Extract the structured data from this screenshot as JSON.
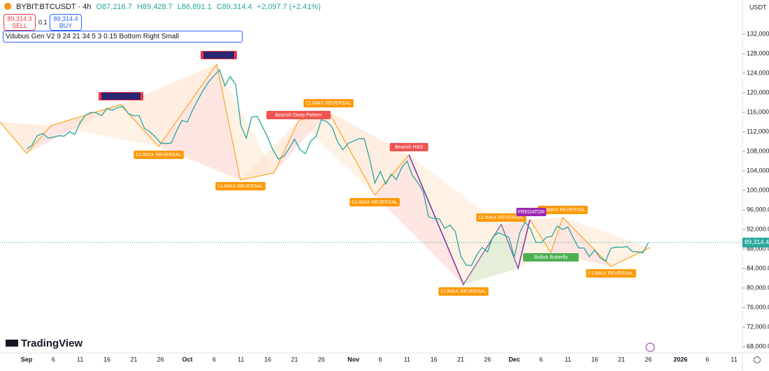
{
  "header": {
    "symbol": "BYBIT:BTCUSDT · 4h",
    "open": "O87,216.7",
    "high": "H89,428.7",
    "low": "L86,891.1",
    "close": "C89,314.4",
    "change": "+2,097.7 (+2.41%)"
  },
  "order_panel": {
    "sell_price": "89,314.3",
    "sell": "SELL",
    "size": "0.1",
    "buy_price": "89,314.4",
    "buy": "BUY"
  },
  "indicator": "Vdubus Gen V2 9 24 21 34 5 3 0.15 Bottom Right Small",
  "currency": "USDT",
  "brand": "TradingView",
  "chart_data": {
    "type": "line",
    "color": "#26a69a",
    "categories": [
      "Sep",
      null,
      null,
      null,
      null,
      "6",
      null,
      null,
      null,
      null,
      "11",
      null,
      null,
      null,
      null,
      "16",
      null,
      null,
      null,
      null,
      "21",
      null,
      null,
      null,
      null,
      "26",
      null,
      null,
      null,
      null,
      "Oct",
      null,
      null,
      null,
      null,
      "6",
      null,
      null,
      null,
      null,
      "11",
      null,
      null,
      null,
      null,
      "16",
      null,
      null,
      null,
      null,
      "21",
      null,
      null,
      null,
      null,
      "26",
      null,
      null,
      null,
      null,
      null,
      "Nov",
      null,
      null,
      null,
      null,
      "6",
      null,
      null,
      null,
      null,
      "11",
      null,
      null,
      null,
      null,
      "16",
      null,
      null,
      null,
      null,
      "21",
      null,
      null,
      null,
      null,
      "26",
      null,
      null,
      null,
      null,
      "Dec",
      null,
      null,
      null,
      null,
      "6",
      null,
      null,
      null,
      null,
      "11",
      null,
      null,
      null,
      null,
      "16",
      null,
      null,
      null,
      null,
      "21",
      null,
      null,
      null,
      null,
      "26",
      null,
      null,
      null,
      null,
      null,
      "2026",
      null,
      null,
      null,
      null,
      "6",
      null,
      null,
      null,
      null,
      "11"
    ],
    "values": [
      108500,
      109200,
      111200,
      111700,
      110700,
      110900,
      111200,
      111100,
      112000,
      111500,
      113900,
      115400,
      116000,
      115900,
      115300,
      116800,
      116400,
      117000,
      117200,
      115700,
      115300,
      115300,
      112700,
      112000,
      111000,
      109700,
      109600,
      109700,
      112200,
      114300,
      114000,
      116500,
      118600,
      120600,
      122300,
      123500,
      124700,
      121400,
      123300,
      121700,
      113200,
      110700,
      115000,
      115200,
      113100,
      110800,
      108200,
      106400,
      107000,
      108600,
      110500,
      108400,
      107500,
      110100,
      111000,
      114500,
      114100,
      113000,
      110000,
      108300,
      109600,
      110100,
      110600,
      110600,
      106500,
      101500,
      103900,
      101300,
      103300,
      102200,
      104700,
      106000,
      103000,
      101600,
      99700,
      94600,
      94200,
      94200,
      92200,
      92900,
      91500,
      86600,
      84700,
      84600,
      86800,
      88300,
      87400,
      90500,
      91300,
      90900,
      90400,
      86300,
      91300,
      93500,
      92100,
      89400,
      89300,
      90400,
      90600,
      92700,
      92000,
      92500,
      90300,
      88200,
      88200,
      86400,
      87800,
      86200,
      85500,
      88100,
      88400,
      88300,
      88500,
      87500,
      87400,
      87200,
      89314.4,
      null,
      null,
      null,
      null,
      null,
      null,
      null,
      null,
      null,
      null,
      null,
      null,
      null,
      null,
      null,
      null
    ],
    "ylim": [
      66860,
      135860
    ],
    "yticks": [
      {
        "value": 68000,
        "label": "68,000.0"
      },
      {
        "value": 72000,
        "label": "72,000.0"
      },
      {
        "value": 76000,
        "label": "76,000.0"
      },
      {
        "value": 80000,
        "label": "80,000.0"
      },
      {
        "value": 84000,
        "label": "84,000.0"
      },
      {
        "value": 88000,
        "label": "88,000.0"
      },
      {
        "value": 92000,
        "label": "92,000.0"
      },
      {
        "value": 96000,
        "label": "96,000.0"
      },
      {
        "value": 100000,
        "label": "100,000.0"
      },
      {
        "value": 104000,
        "label": "104,000.0"
      },
      {
        "value": 108000,
        "label": "108,000.0"
      },
      {
        "value": 112000,
        "label": "112,000.0"
      },
      {
        "value": 116000,
        "label": "116,000.0"
      },
      {
        "value": 120000,
        "label": "120,000.0"
      },
      {
        "value": 124000,
        "label": "124,000.0"
      },
      {
        "value": 128000,
        "label": "128,000.0"
      },
      {
        "value": 132000,
        "label": "132,000.0"
      }
    ],
    "last_price": {
      "value": 89314.4,
      "label": "89,314.4"
    },
    "annotations": [
      {
        "text": "CLIMAX REVERSAL",
        "color": "#ff9800"
      },
      {
        "text": "CLIMAX REVERSAL",
        "color": "#ff9800"
      },
      {
        "text": "CLIMAX REVERSAL",
        "color": "#ff9800"
      },
      {
        "text": "CLIMAX REVERSAL",
        "color": "#ff9800"
      },
      {
        "text": "CLIMAX REVERSAL",
        "color": "#ff9800"
      },
      {
        "text": "CLIMAX REVERSAL",
        "color": "#ff9800"
      },
      {
        "text": "CLIMAX REVERSAL",
        "color": "#ff9800"
      },
      {
        "text": "CLIMAX REVERSAL",
        "color": "#ff9800"
      },
      {
        "text": "Bearish Deep Pattern",
        "color": "#f05350"
      },
      {
        "text": "Bearish H&S",
        "color": "#f05350"
      },
      {
        "text": "PREDATOR",
        "color": "#9c27b0"
      },
      {
        "text": "Bullish Butterfly",
        "color": "#4caf50"
      }
    ]
  }
}
